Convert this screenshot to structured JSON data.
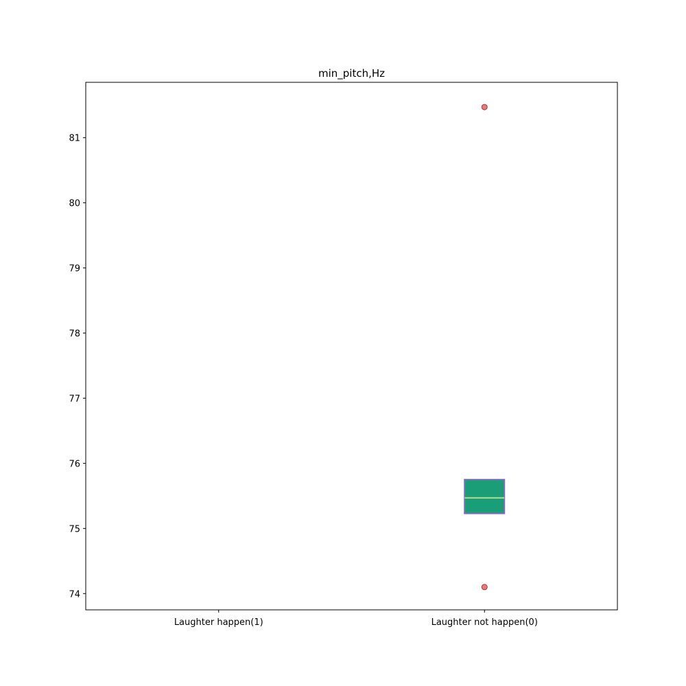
{
  "chart_data": {
    "type": "box",
    "title": "min_pitch,Hz",
    "xlabel": "",
    "ylabel": "",
    "categories": [
      "Laughter happen(1)",
      "Laughter not happen(0)"
    ],
    "ylim": [
      73.75,
      81.85
    ],
    "yticks": [
      74,
      75,
      76,
      77,
      78,
      79,
      80,
      81
    ],
    "boxes": [
      null,
      {
        "q1": 75.23,
        "median": 75.47,
        "q3": 75.75,
        "whisker_low": 75.23,
        "whisker_high": 75.75,
        "outliers": [
          81.47,
          74.1
        ]
      }
    ],
    "grid": false,
    "colors": {
      "box_fill": "#1a9e77",
      "box_edge": "#7f6cbf",
      "median": "#b2df8a",
      "outlier_fill": "#e8797a",
      "outlier_edge": "#a33a3a"
    }
  }
}
